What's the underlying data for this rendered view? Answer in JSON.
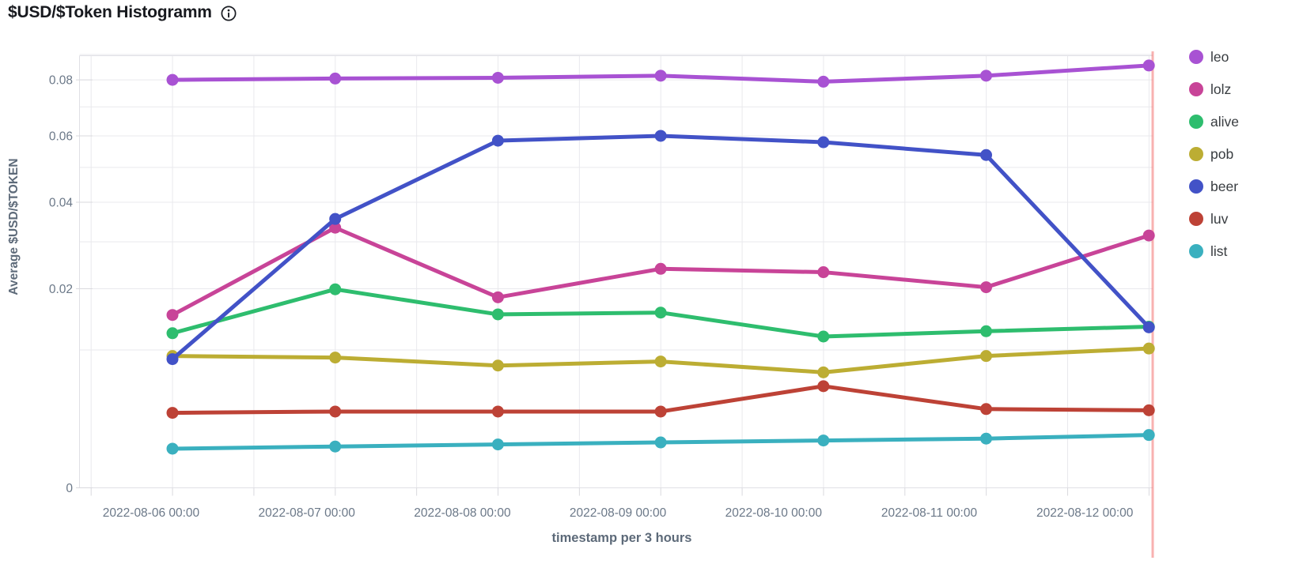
{
  "header": {
    "title": "$USD/$Token Histogramm",
    "info_icon": "info-circle"
  },
  "chart_data": {
    "type": "line",
    "title": "$USD/$Token Histogramm",
    "xlabel": "timestamp per 3 hours",
    "ylabel": "Average $USD/$TOKEN",
    "y_scale": "sqrt",
    "ylim": [
      0,
      0.09
    ],
    "grid": true,
    "legend_position": "right",
    "x_tick_labels": [
      "2022-08-06 00:00",
      "2022-08-07 00:00",
      "2022-08-08 00:00",
      "2022-08-09 00:00",
      "2022-08-10 00:00",
      "2022-08-11 00:00",
      "2022-08-12 00:00"
    ],
    "y_ticks": [
      {
        "label": "0.08",
        "value": 0.08
      },
      {
        "label": "0.06",
        "value": 0.06
      },
      {
        "label": "0.04",
        "value": 0.04
      },
      {
        "label": "0.02",
        "value": 0.02
      },
      {
        "label": "0",
        "value": 0
      }
    ],
    "y_grid_values": [
      0.09,
      0.08,
      0.07,
      0.06,
      0.05,
      0.04,
      0.03,
      0.02,
      0.01
    ],
    "series": [
      {
        "name": "leo",
        "color": "#a852d3",
        "values": [
          0.08,
          0.0805,
          0.0808,
          0.0816,
          0.0793,
          0.0816,
          0.0856
        ]
      },
      {
        "name": "lolz",
        "color": "#c84498",
        "values": [
          0.0153,
          0.0334,
          0.0184,
          0.024,
          0.0233,
          0.0203,
          0.0315
        ]
      },
      {
        "name": "alive",
        "color": "#2ebd6e",
        "values": [
          0.0124,
          0.0199,
          0.0154,
          0.0157,
          0.0119,
          0.0127,
          0.0134
        ]
      },
      {
        "name": "pob",
        "color": "#bcad33",
        "values": [
          0.0092,
          0.009,
          0.008,
          0.0085,
          0.0072,
          0.0092,
          0.0102
        ]
      },
      {
        "name": "beer",
        "color": "#4252c7",
        "values": [
          0.0088,
          0.0356,
          0.0584,
          0.06,
          0.0579,
          0.0538,
          0.0133
        ]
      },
      {
        "name": "luv",
        "color": "#bd4236",
        "values": [
          0.0033,
          0.0034,
          0.0034,
          0.0034,
          0.0057,
          0.0036,
          0.0035
        ]
      },
      {
        "name": "list",
        "color": "#3ab0bf",
        "values": [
          0.0011,
          0.0012,
          0.0013,
          0.0014,
          0.0015,
          0.0016,
          0.0018
        ]
      }
    ],
    "annotation": {
      "type": "vertical-line",
      "position": "at-last-point",
      "color": "#ef5350"
    },
    "colors": {
      "grid": "#e9e9ed",
      "axis_border": "#e0e0e5",
      "tick_mark": "#d9d9de",
      "tick_label": "#6b7888",
      "axis_title": "#5d6a79",
      "legend_text": "#383c40",
      "title_text": "#17191e"
    }
  }
}
